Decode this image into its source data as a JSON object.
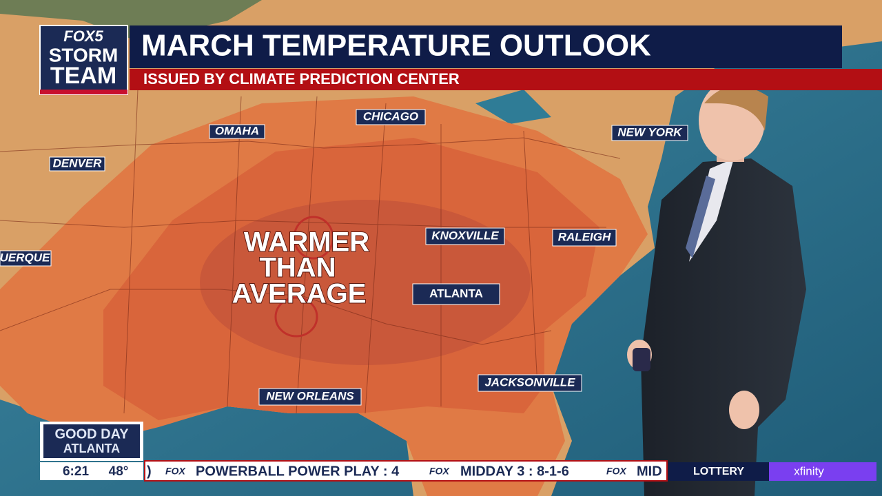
{
  "header": {
    "logo": [
      "FOX5",
      "STORM",
      "TEAM"
    ],
    "title": "MARCH TEMPERATURE OUTLOOK",
    "subtitle": "ISSUED BY CLIMATE PREDICTION CENTER"
  },
  "map": {
    "cities": [
      "CHICAGO",
      "OMAHA",
      "DENVER",
      "NEW YORK",
      "UERQUE",
      "KNOXVILLE",
      "RALEIGH",
      "ATLANTA",
      "NEW ORLEANS",
      "JACKSONVILLE"
    ],
    "annotation": [
      "WARMER",
      "THAN",
      "AVERAGE"
    ]
  },
  "footer": {
    "show": [
      "GOOD DAY",
      "ATLANTA"
    ],
    "time": "6:21",
    "temperature": "48°",
    "ticker_prefix": ")",
    "network": "FOX",
    "ticker": [
      "POWERBALL POWER PLAY : 4",
      "MIDDAY 3 : 8-1-6",
      "MID"
    ],
    "category": "LOTTERY",
    "sponsor": "xfinity"
  }
}
